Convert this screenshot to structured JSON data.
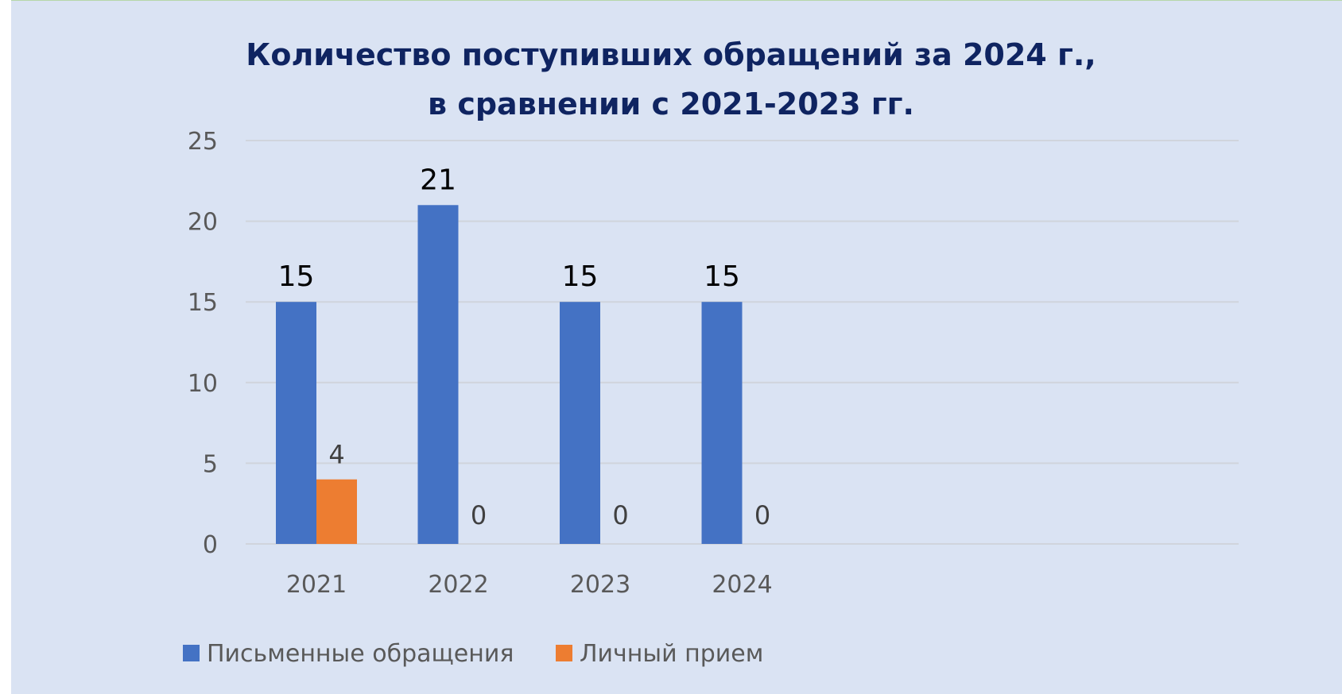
{
  "chart_data": {
    "type": "bar",
    "title_lines": [
      "Количество поступивших обращений за 2024 г.,",
      "в сравнении с 2021-2023 гг."
    ],
    "categories": [
      "2021",
      "2022",
      "2023",
      "2024"
    ],
    "series": [
      {
        "name": "Письменные обращения",
        "color": "#4472c4",
        "values": [
          15,
          21,
          15,
          15
        ]
      },
      {
        "name": "Личный прием",
        "color": "#ed7d31",
        "values": [
          4,
          0,
          0,
          0
        ]
      }
    ],
    "ylim": [
      0,
      25
    ],
    "yticks": [
      0,
      5,
      10,
      15,
      20,
      25
    ],
    "grid": true,
    "legend_position": "bottom-left",
    "data_labels": true
  }
}
